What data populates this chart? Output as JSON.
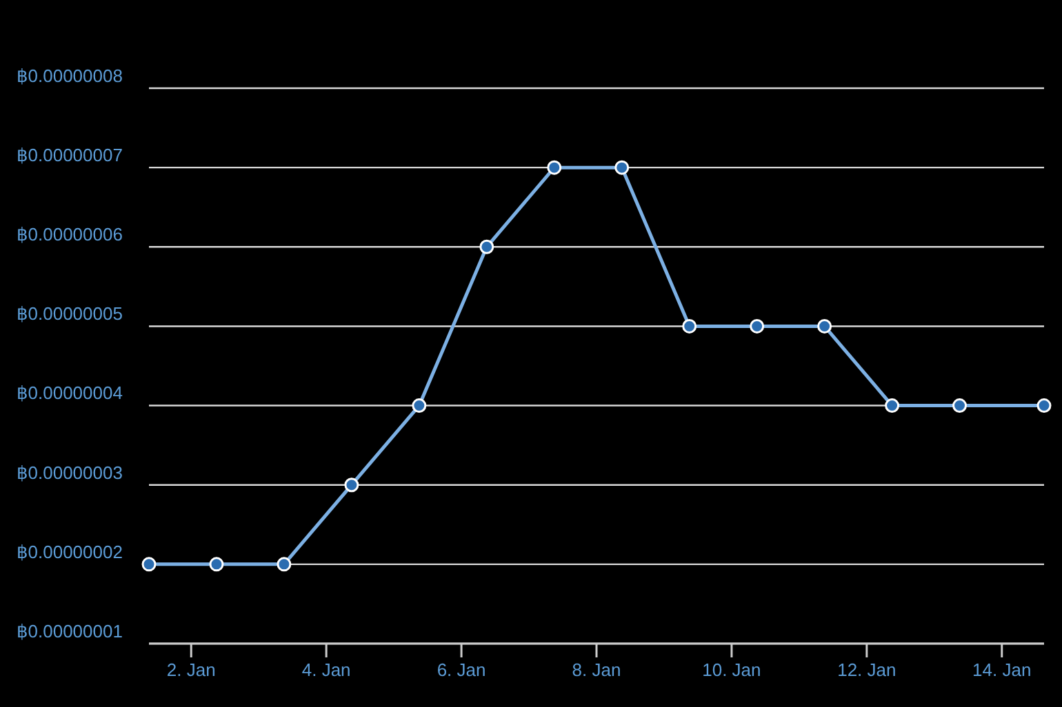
{
  "chart_data": {
    "type": "line",
    "x": [
      "--01-01T09:00",
      "--01-02T09:00",
      "--01-03T09:00",
      "--01-04T09:00",
      "--01-05T09:00",
      "--01-06T09:00",
      "--01-07T09:00",
      "--01-08T09:00",
      "--01-09T09:00",
      "--01-10T09:00",
      "--01-11T09:00",
      "--01-12T09:00",
      "--01-13T09:00",
      "--01-14T15:00"
    ],
    "values": [
      2e-08,
      2e-08,
      2e-08,
      3e-08,
      4e-08,
      6e-08,
      7e-08,
      7e-08,
      5e-08,
      5e-08,
      5e-08,
      4e-08,
      4e-08,
      4e-08
    ],
    "color": "#7cb0e4",
    "marker": "circle",
    "grid": "y",
    "xlim": [
      "--01-01T09:00",
      "--01-14T15:00"
    ],
    "xticks": [
      {
        "value": "--01-02",
        "label": "2. Jan"
      },
      {
        "value": "--01-04",
        "label": "4. Jan"
      },
      {
        "value": "--01-06",
        "label": "6. Jan"
      },
      {
        "value": "--01-08",
        "label": "8. Jan"
      },
      {
        "value": "--01-10",
        "label": "10. Jan"
      },
      {
        "value": "--01-12",
        "label": "12. Jan"
      },
      {
        "value": "--01-14",
        "label": "14. Jan"
      }
    ],
    "ylim": [
      1e-08,
      8e-08
    ],
    "yticks": [
      {
        "value": 1e-08,
        "label": "฿0.00000001"
      },
      {
        "value": 2e-08,
        "label": "฿0.00000002"
      },
      {
        "value": 3e-08,
        "label": "฿0.00000003"
      },
      {
        "value": 4e-08,
        "label": "฿0.00000004"
      },
      {
        "value": 5e-08,
        "label": "฿0.00000005"
      },
      {
        "value": 6e-08,
        "label": "฿0.00000006"
      },
      {
        "value": 7e-08,
        "label": "฿0.00000007"
      },
      {
        "value": 8e-08,
        "label": "฿0.00000008"
      }
    ]
  }
}
